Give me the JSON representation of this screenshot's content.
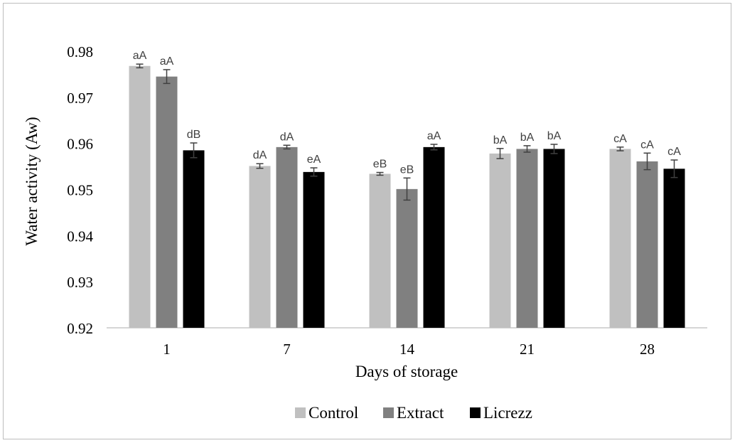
{
  "chart_data": {
    "type": "bar",
    "title": "",
    "xlabel": "Days of storage",
    "ylabel": "Water activity (Aw)",
    "ylim": [
      0.92,
      0.98
    ],
    "yticks": [
      "0.92",
      "0.93",
      "0.94",
      "0.95",
      "0.96",
      "0.97",
      "0.98"
    ],
    "categories": [
      "1",
      "7",
      "14",
      "21",
      "28"
    ],
    "legend_position": "bottom",
    "grid": false,
    "series": [
      {
        "name": "Control",
        "color": "#c0c0c0",
        "values": [
          0.9768,
          0.9551,
          0.9534,
          0.9578,
          0.9588
        ],
        "errors": [
          0.0004,
          0.0005,
          0.0003,
          0.0011,
          0.0004
        ],
        "labels": [
          "aA",
          "dA",
          "eB",
          "bA",
          "cA"
        ]
      },
      {
        "name": "Extract",
        "color": "#808080",
        "values": [
          0.9745,
          0.9592,
          0.9501,
          0.9588,
          0.9561
        ],
        "errors": [
          0.0015,
          0.0004,
          0.0024,
          0.0007,
          0.0018
        ],
        "labels": [
          "aA",
          "dA",
          "eB",
          "bA",
          "cA"
        ]
      },
      {
        "name": "Licrezz",
        "color": "#000000",
        "values": [
          0.9585,
          0.9538,
          0.9592,
          0.9588,
          0.9545
        ],
        "errors": [
          0.0016,
          0.0009,
          0.0006,
          0.001,
          0.0019
        ],
        "labels": [
          "dB",
          "eA",
          "aA",
          "bA",
          "cA"
        ]
      }
    ]
  }
}
